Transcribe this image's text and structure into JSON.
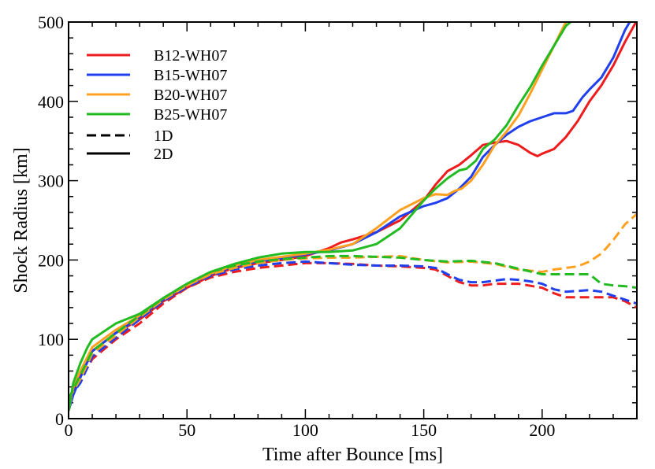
{
  "chart_data": {
    "type": "line",
    "xlabel": "Time after Bounce [ms]",
    "ylabel": "Shock Radius [km]",
    "xlim": [
      0,
      240
    ],
    "ylim": [
      0,
      500
    ],
    "xticks": [
      0,
      50,
      100,
      150,
      200
    ],
    "yticks": [
      0,
      100,
      200,
      300,
      400,
      500
    ],
    "x_tick_labels": [
      "0",
      "50",
      "100",
      "150",
      "200"
    ],
    "y_tick_labels": [
      "0",
      "100",
      "200",
      "300",
      "400",
      "500"
    ],
    "legend_placement": "top-left",
    "legend": [
      {
        "label": "B12-WH07",
        "color": "#ee1c1c",
        "style": "solid"
      },
      {
        "label": "B15-WH07",
        "color": "#2040ee",
        "style": "solid"
      },
      {
        "label": "B20-WH07",
        "color": "#ffa020",
        "style": "solid"
      },
      {
        "label": "B25-WH07",
        "color": "#22bb22",
        "style": "solid"
      },
      {
        "label": "1D",
        "color": "#000000",
        "style": "dashed"
      },
      {
        "label": "2D",
        "color": "#000000",
        "style": "solid"
      }
    ],
    "series": [
      {
        "model": "B12-WH07",
        "dim": "2D",
        "color": "#ee1c1c",
        "style": "solid",
        "points": [
          [
            0,
            10
          ],
          [
            2,
            35
          ],
          [
            5,
            55
          ],
          [
            10,
            85
          ],
          [
            20,
            108
          ],
          [
            30,
            125
          ],
          [
            40,
            148
          ],
          [
            50,
            165
          ],
          [
            60,
            180
          ],
          [
            70,
            190
          ],
          [
            80,
            196
          ],
          [
            90,
            200
          ],
          [
            100,
            205
          ],
          [
            110,
            215
          ],
          [
            115,
            222
          ],
          [
            120,
            226
          ],
          [
            130,
            235
          ],
          [
            140,
            250
          ],
          [
            150,
            275
          ],
          [
            155,
            295
          ],
          [
            160,
            312
          ],
          [
            165,
            320
          ],
          [
            170,
            332
          ],
          [
            175,
            345
          ],
          [
            180,
            348
          ],
          [
            185,
            350
          ],
          [
            190,
            345
          ],
          [
            195,
            335
          ],
          [
            198,
            331
          ],
          [
            200,
            334
          ],
          [
            205,
            340
          ],
          [
            210,
            355
          ],
          [
            215,
            375
          ],
          [
            220,
            400
          ],
          [
            225,
            420
          ],
          [
            230,
            445
          ],
          [
            235,
            475
          ],
          [
            240,
            502
          ]
        ]
      },
      {
        "model": "B15-WH07",
        "dim": "2D",
        "color": "#2040ee",
        "style": "solid",
        "points": [
          [
            0,
            10
          ],
          [
            2,
            30
          ],
          [
            5,
            52
          ],
          [
            10,
            85
          ],
          [
            20,
            108
          ],
          [
            30,
            128
          ],
          [
            40,
            150
          ],
          [
            50,
            168
          ],
          [
            60,
            182
          ],
          [
            70,
            192
          ],
          [
            80,
            198
          ],
          [
            90,
            202
          ],
          [
            100,
            207
          ],
          [
            110,
            212
          ],
          [
            120,
            220
          ],
          [
            130,
            235
          ],
          [
            140,
            255
          ],
          [
            150,
            268
          ],
          [
            155,
            272
          ],
          [
            160,
            278
          ],
          [
            165,
            290
          ],
          [
            170,
            305
          ],
          [
            175,
            330
          ],
          [
            180,
            345
          ],
          [
            185,
            358
          ],
          [
            190,
            368
          ],
          [
            195,
            375
          ],
          [
            200,
            380
          ],
          [
            205,
            385
          ],
          [
            210,
            385
          ],
          [
            213,
            388
          ],
          [
            217,
            405
          ],
          [
            220,
            415
          ],
          [
            225,
            430
          ],
          [
            230,
            455
          ],
          [
            235,
            490
          ],
          [
            237,
            500
          ]
        ]
      },
      {
        "model": "B20-WH07",
        "dim": "2D",
        "color": "#ffa020",
        "style": "solid",
        "points": [
          [
            0,
            10
          ],
          [
            2,
            40
          ],
          [
            5,
            60
          ],
          [
            10,
            90
          ],
          [
            20,
            112
          ],
          [
            30,
            130
          ],
          [
            40,
            152
          ],
          [
            50,
            168
          ],
          [
            60,
            183
          ],
          [
            70,
            193
          ],
          [
            80,
            200
          ],
          [
            90,
            204
          ],
          [
            100,
            208
          ],
          [
            110,
            213
          ],
          [
            120,
            220
          ],
          [
            130,
            240
          ],
          [
            140,
            263
          ],
          [
            150,
            278
          ],
          [
            155,
            283
          ],
          [
            160,
            282
          ],
          [
            163,
            287
          ],
          [
            166,
            290
          ],
          [
            170,
            300
          ],
          [
            175,
            320
          ],
          [
            180,
            345
          ],
          [
            185,
            362
          ],
          [
            190,
            382
          ],
          [
            195,
            410
          ],
          [
            200,
            440
          ],
          [
            205,
            470
          ],
          [
            210,
            500
          ]
        ]
      },
      {
        "model": "B25-WH07",
        "dim": "2D",
        "color": "#22bb22",
        "style": "solid",
        "points": [
          [
            0,
            10
          ],
          [
            2,
            45
          ],
          [
            5,
            70
          ],
          [
            8,
            90
          ],
          [
            10,
            100
          ],
          [
            20,
            120
          ],
          [
            30,
            132
          ],
          [
            40,
            152
          ],
          [
            50,
            170
          ],
          [
            60,
            185
          ],
          [
            70,
            195
          ],
          [
            80,
            203
          ],
          [
            90,
            208
          ],
          [
            100,
            210
          ],
          [
            110,
            210
          ],
          [
            120,
            212
          ],
          [
            130,
            220
          ],
          [
            140,
            240
          ],
          [
            150,
            275
          ],
          [
            155,
            290
          ],
          [
            160,
            303
          ],
          [
            165,
            313
          ],
          [
            168,
            315
          ],
          [
            172,
            325
          ],
          [
            175,
            340
          ],
          [
            180,
            352
          ],
          [
            185,
            370
          ],
          [
            190,
            395
          ],
          [
            195,
            418
          ],
          [
            200,
            445
          ],
          [
            205,
            470
          ],
          [
            210,
            495
          ],
          [
            212,
            500
          ]
        ]
      },
      {
        "model": "B12-WH07",
        "dim": "1D",
        "color": "#ee1c1c",
        "style": "dashed",
        "points": [
          [
            0,
            25
          ],
          [
            5,
            48
          ],
          [
            10,
            75
          ],
          [
            20,
            100
          ],
          [
            30,
            120
          ],
          [
            40,
            145
          ],
          [
            50,
            165
          ],
          [
            60,
            178
          ],
          [
            70,
            185
          ],
          [
            80,
            190
          ],
          [
            90,
            193
          ],
          [
            100,
            196
          ],
          [
            110,
            196
          ],
          [
            120,
            195
          ],
          [
            130,
            193
          ],
          [
            140,
            192
          ],
          [
            150,
            190
          ],
          [
            155,
            188
          ],
          [
            160,
            180
          ],
          [
            165,
            172
          ],
          [
            170,
            168
          ],
          [
            175,
            168
          ],
          [
            180,
            170
          ],
          [
            190,
            170
          ],
          [
            200,
            165
          ],
          [
            205,
            158
          ],
          [
            210,
            153
          ],
          [
            220,
            153
          ],
          [
            230,
            153
          ],
          [
            235,
            148
          ],
          [
            240,
            140
          ]
        ]
      },
      {
        "model": "B15-WH07",
        "dim": "1D",
        "color": "#2040ee",
        "style": "dashed",
        "points": [
          [
            0,
            25
          ],
          [
            5,
            45
          ],
          [
            10,
            78
          ],
          [
            20,
            102
          ],
          [
            30,
            125
          ],
          [
            40,
            148
          ],
          [
            50,
            166
          ],
          [
            60,
            180
          ],
          [
            70,
            188
          ],
          [
            80,
            193
          ],
          [
            90,
            196
          ],
          [
            100,
            198
          ],
          [
            110,
            196
          ],
          [
            120,
            194
          ],
          [
            130,
            193
          ],
          [
            140,
            193
          ],
          [
            150,
            192
          ],
          [
            155,
            190
          ],
          [
            160,
            182
          ],
          [
            165,
            175
          ],
          [
            170,
            172
          ],
          [
            175,
            172
          ],
          [
            180,
            174
          ],
          [
            185,
            176
          ],
          [
            190,
            175
          ],
          [
            195,
            173
          ],
          [
            200,
            170
          ],
          [
            205,
            163
          ],
          [
            210,
            160
          ],
          [
            220,
            162
          ],
          [
            225,
            160
          ],
          [
            230,
            155
          ],
          [
            235,
            150
          ],
          [
            240,
            145
          ]
        ]
      },
      {
        "model": "B20-WH07",
        "dim": "1D",
        "color": "#ffa020",
        "style": "dashed",
        "points": [
          [
            0,
            25
          ],
          [
            5,
            50
          ],
          [
            10,
            82
          ],
          [
            20,
            105
          ],
          [
            30,
            128
          ],
          [
            40,
            150
          ],
          [
            50,
            168
          ],
          [
            60,
            182
          ],
          [
            70,
            190
          ],
          [
            80,
            196
          ],
          [
            90,
            200
          ],
          [
            100,
            202
          ],
          [
            110,
            203
          ],
          [
            120,
            203
          ],
          [
            130,
            204
          ],
          [
            140,
            205
          ],
          [
            150,
            200
          ],
          [
            160,
            197
          ],
          [
            170,
            198
          ],
          [
            180,
            195
          ],
          [
            190,
            188
          ],
          [
            200,
            185
          ],
          [
            205,
            188
          ],
          [
            210,
            190
          ],
          [
            215,
            192
          ],
          [
            220,
            198
          ],
          [
            225,
            208
          ],
          [
            230,
            225
          ],
          [
            235,
            245
          ],
          [
            240,
            258
          ]
        ]
      },
      {
        "model": "B25-WH07",
        "dim": "1D",
        "color": "#22bb22",
        "style": "dashed",
        "points": [
          [
            0,
            25
          ],
          [
            5,
            55
          ],
          [
            10,
            85
          ],
          [
            20,
            108
          ],
          [
            30,
            130
          ],
          [
            40,
            152
          ],
          [
            50,
            170
          ],
          [
            60,
            185
          ],
          [
            70,
            193
          ],
          [
            80,
            198
          ],
          [
            90,
            201
          ],
          [
            100,
            203
          ],
          [
            110,
            205
          ],
          [
            120,
            205
          ],
          [
            130,
            204
          ],
          [
            140,
            203
          ],
          [
            150,
            200
          ],
          [
            160,
            198
          ],
          [
            170,
            199
          ],
          [
            180,
            196
          ],
          [
            190,
            189
          ],
          [
            200,
            182
          ],
          [
            210,
            182
          ],
          [
            220,
            182
          ],
          [
            225,
            170
          ],
          [
            230,
            168
          ],
          [
            235,
            167
          ],
          [
            240,
            165
          ]
        ]
      }
    ]
  }
}
